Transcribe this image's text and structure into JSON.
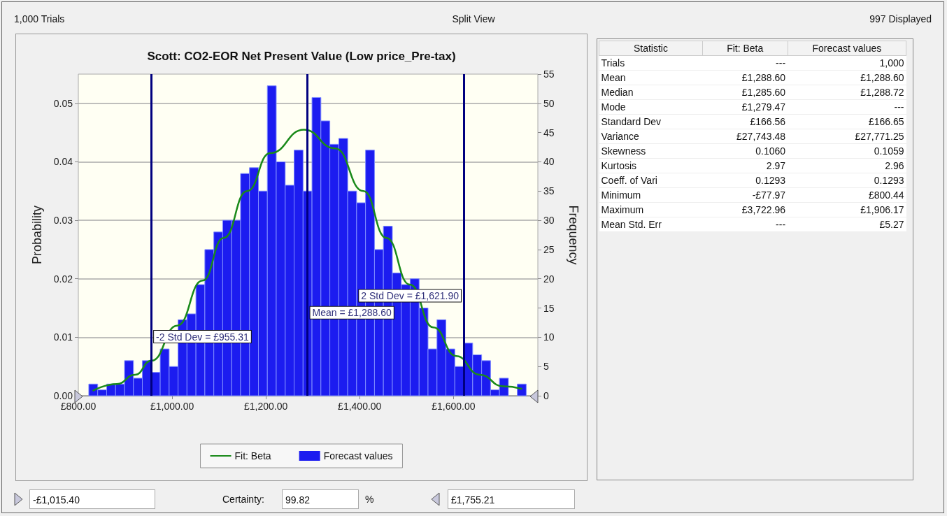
{
  "chart_data": [
    {
      "type": "histogram",
      "title": "Scott: CO2-EOR Net Present Value (Low price_Pre-tax)",
      "ylabel": "Probability",
      "y2label": "Frequency",
      "xlim": [
        800,
        1780
      ],
      "xticks": [
        {
          "value": 800,
          "label": "£800.00"
        },
        {
          "value": 1000,
          "label": "£1,000.00"
        },
        {
          "value": 1200,
          "label": "£1,200.00"
        },
        {
          "value": 1400,
          "label": "£1,400.00"
        },
        {
          "value": 1600,
          "label": "£1,600.00"
        }
      ],
      "ylim": [
        0,
        0.055
      ],
      "yticks": [
        {
          "value": 0,
          "label": "0.00"
        },
        0.01,
        0.02,
        0.03,
        0.04,
        0.05
      ],
      "y2lim": [
        0,
        55
      ],
      "y2ticks": [
        0,
        5,
        10,
        15,
        20,
        25,
        30,
        35,
        40,
        45,
        50,
        55
      ],
      "grid": "y",
      "legend": "bottom",
      "marker": "none",
      "line_style": "solid",
      "series": [
        {
          "type": "line",
          "name": "Fit: Beta",
          "color": "#1a8a1a",
          "x": [
            832,
            882,
            921,
            956,
            1011,
            1065,
            1110,
            1160,
            1209,
            1281,
            1348,
            1408,
            1457,
            1507,
            1557,
            1606,
            1656,
            1706,
            1745
          ],
          "values": [
            0.0009,
            0.002,
            0.0036,
            0.006,
            0.012,
            0.0197,
            0.027,
            0.035,
            0.0415,
            0.0455,
            0.0423,
            0.035,
            0.027,
            0.019,
            0.0117,
            0.0068,
            0.0036,
            0.0016,
            0.0012
          ]
        },
        {
          "type": "histogram",
          "name": "Forecast values",
          "color": "#1c1cf0",
          "axis": "y2",
          "bins": [
            822.3,
            841.3,
            860.4,
            879.4,
            898.5,
            917.5,
            936.5,
            955.6,
            974.6,
            993.7,
            1012.7,
            1031.7,
            1050.8,
            1069.8,
            1088.9,
            1107.9,
            1126.9,
            1146.0,
            1165.0,
            1184.1,
            1203.1,
            1222.1,
            1241.2,
            1260.2,
            1279.3,
            1298.3,
            1317.3,
            1336.4,
            1355.4,
            1374.5,
            1393.5,
            1412.5,
            1431.6,
            1450.6,
            1469.7,
            1488.7,
            1507.7,
            1526.8,
            1545.8,
            1564.9,
            1583.9,
            1602.9,
            1622.0,
            1641.0,
            1660.1,
            1679.1,
            1698.1,
            1717.2,
            1736.2,
            1755.2
          ],
          "values": [
            2,
            1,
            2,
            2,
            6,
            3,
            6,
            4,
            8,
            5,
            13,
            14,
            19,
            25,
            28,
            30,
            30,
            38,
            39,
            35,
            53,
            40,
            36,
            42,
            35,
            51,
            47,
            43,
            44,
            35,
            33,
            42,
            25,
            29,
            21,
            19,
            20,
            15,
            8,
            13,
            8,
            5,
            9,
            7,
            6,
            1,
            3,
            0,
            2
          ]
        }
      ],
      "ref_lines": [
        {
          "axis": "x",
          "value": 955.31,
          "label": "-2 Std Dev = £955.31",
          "color": "#00007f"
        },
        {
          "axis": "x",
          "value": 1621.9,
          "label": "2 Std Dev = £1,621.90",
          "color": "#00007f"
        },
        {
          "axis": "x",
          "value": 1288.6,
          "label": "Mean = £1,288.60",
          "color": "#00007f"
        }
      ],
      "annotations": [
        "1,000 Trials",
        "Split View",
        "997 Displayed",
        "-£1,015.40",
        "Certainty:",
        "99.82",
        "%",
        "£1,755.21"
      ]
    },
    {
      "type": "other",
      "ylabel": "Statistic",
      "categories": [
        "Trials",
        "Mean",
        "Median",
        "Mode",
        "Standard Dev",
        "Variance",
        "Skewness",
        "Kurtosis",
        "Coeff. of Vari",
        "Minimum",
        "Maximum",
        "Mean  Std. Err"
      ],
      "series": [
        {
          "name": "Fit: Beta",
          "values": [
            null,
            1288.6,
            1285.6,
            1279.47,
            166.56,
            27743.48,
            0.106,
            2.97,
            0.1293,
            -77.97,
            3722.96,
            null
          ],
          "value_labels": [
            "---",
            "£1,288.60",
            "£1,285.60",
            "£1,279.47",
            "£166.56",
            "£27,743.48",
            "0.1060",
            "2.97",
            "0.1293",
            "-£77.97",
            "£3,722.96",
            "---"
          ]
        },
        {
          "name": "Forecast values",
          "values": [
            1000,
            1288.6,
            1288.72,
            null,
            166.65,
            27771.25,
            0.1059,
            2.96,
            0.1293,
            800.44,
            1906.17,
            5.27
          ],
          "value_labels": [
            "1,000",
            "£1,288.60",
            "£1,288.72",
            "---",
            "£166.65",
            "£27,771.25",
            "0.1059",
            "2.96",
            "0.1293",
            "£800.44",
            "£1,906.17",
            "£5.27"
          ]
        }
      ]
    }
  ]
}
